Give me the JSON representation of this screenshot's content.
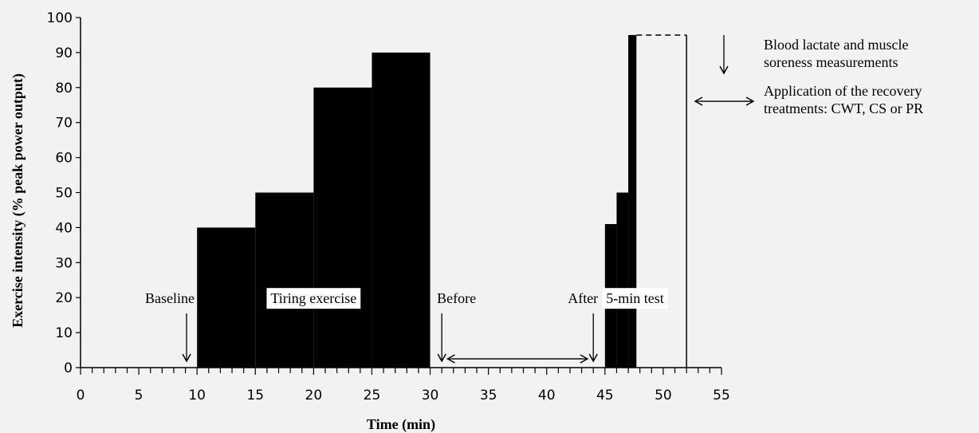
{
  "chart_data": {
    "type": "bar",
    "title": "",
    "xlabel": "Time (min)",
    "ylabel": "Exercise intensity (% peak power output)",
    "xlim": [
      0,
      55
    ],
    "ylim": [
      0,
      100
    ],
    "x_ticks": [
      0,
      5,
      10,
      15,
      20,
      25,
      30,
      35,
      40,
      45,
      50,
      55
    ],
    "y_ticks": [
      0,
      10,
      20,
      30,
      40,
      50,
      60,
      70,
      80,
      90,
      100
    ],
    "x_minor_step": 1,
    "grid": false,
    "legend_position": "top-right",
    "series": [
      {
        "name": "Tiring exercise",
        "segments": [
          {
            "x_start": 10,
            "x_end": 15,
            "value": 40
          },
          {
            "x_start": 15,
            "x_end": 20,
            "value": 50
          },
          {
            "x_start": 20,
            "x_end": 25,
            "value": 80
          },
          {
            "x_start": 25,
            "x_end": 30,
            "value": 90
          }
        ]
      },
      {
        "name": "5-min test",
        "segments": [
          {
            "x_start": 45,
            "x_end": 46,
            "value": 41
          },
          {
            "x_start": 46,
            "x_end": 47,
            "value": 50
          },
          {
            "x_start": 47,
            "x_end": 47.7,
            "value": 95
          }
        ],
        "outline": {
          "x_start": 47.7,
          "x_end": 52,
          "value": 95
        }
      }
    ],
    "annotations": [
      {
        "text": "Baseline",
        "x": 9.1,
        "y": 20,
        "arrow_x": 9.1
      },
      {
        "text": "Tiring exercise",
        "x": 20,
        "y": 20
      },
      {
        "text": "Before",
        "x": 31,
        "y": 20,
        "arrow_x": 31
      },
      {
        "text": "After",
        "x": 44,
        "y": 20,
        "arrow_x": 44
      },
      {
        "text": "5-min test",
        "x": 47.5,
        "y": 20
      }
    ],
    "interval_arrows": [
      {
        "x_start": 31.5,
        "x_end": 43.5,
        "y": 2.5
      }
    ],
    "legend": [
      {
        "symbol": "down-arrow",
        "text_lines": [
          "Blood lactate  and muscle",
          "soreness measurements"
        ]
      },
      {
        "symbol": "double-arrow",
        "text_lines": [
          "Application of the recovery",
          "treatments: CWT, CS  or PR"
        ]
      }
    ]
  }
}
